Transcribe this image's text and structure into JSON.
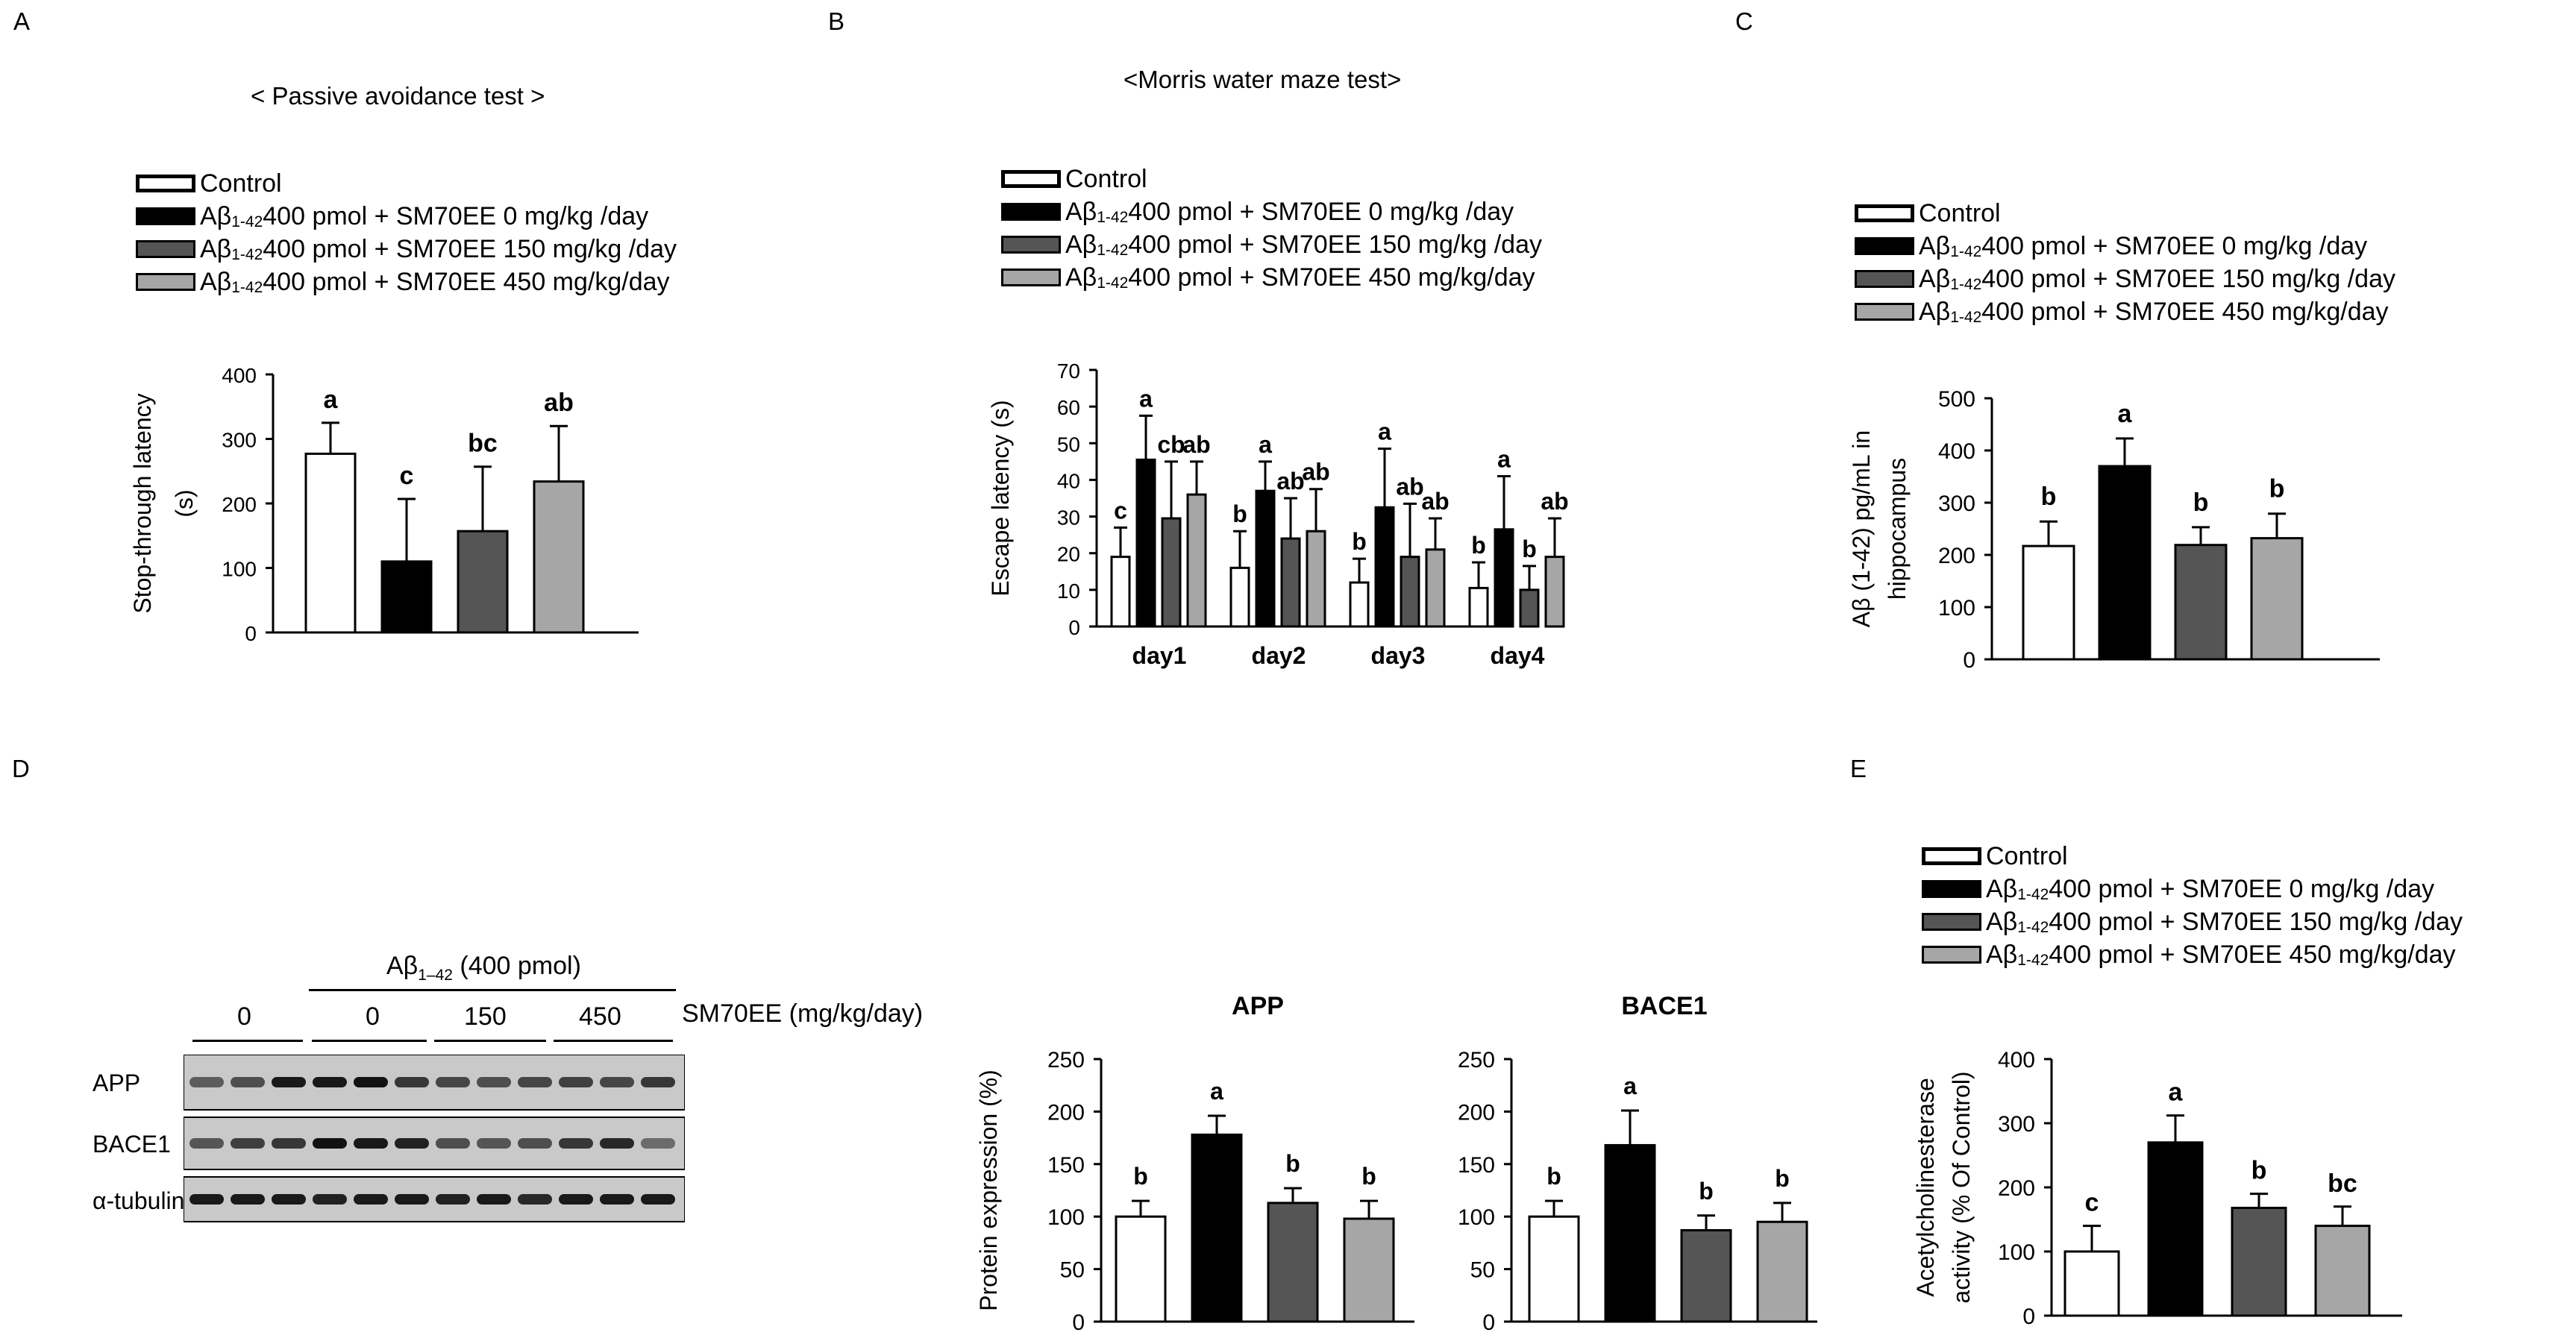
{
  "legend": {
    "control": "Control",
    "ab_prefix": "Aβ",
    "ab_sub": "1-42",
    "dose0": " 400 pmol + SM70EE 0 mg/kg /day",
    "dose150": " 400 pmol + SM70EE 150 mg/kg /day",
    "dose450": " 400 pmol + SM70EE 450 mg/kg/day"
  },
  "colors": {
    "control": "#ffffff",
    "dose0": "#000000",
    "dose150": "#555555",
    "dose450": "#a6a6a6"
  },
  "western_blot": {
    "treatment_label": "Aβ",
    "treatment_sub": "1–42",
    "treatment_dose": "(400 pmol)",
    "group_labels": [
      "0",
      "0",
      "150",
      "450"
    ],
    "sm70ee_label": "SM70EE (mg/kg/day)",
    "rows": [
      "APP",
      "BACE1",
      "α-tubulin"
    ]
  },
  "chart_data": [
    {
      "panel": "A",
      "type": "bar",
      "title": "< Passive avoidance test >",
      "ylabel_lines": [
        "Stop-through  latency",
        "(s)"
      ],
      "ylim": [
        0,
        400
      ],
      "yticks": [
        0,
        100,
        200,
        300,
        400
      ],
      "series": [
        {
          "name": "Control",
          "value": 277,
          "error": 48,
          "label": "a"
        },
        {
          "name": "Aβ 400 pmol + SM70EE 0 mg/kg/day",
          "value": 110,
          "error": 97,
          "label": "c"
        },
        {
          "name": "Aβ 400 pmol + SM70EE 150 mg/kg/day",
          "value": 157,
          "error": 100,
          "label": "bc"
        },
        {
          "name": "Aβ 400 pmol + SM70EE 450 mg/kg/day",
          "value": 234,
          "error": 86,
          "label": "ab"
        }
      ]
    },
    {
      "panel": "B",
      "type": "bar",
      "title": "<Morris water maze test>",
      "ylabel_lines": [
        "Escape latency (s)"
      ],
      "ylim": [
        0,
        70
      ],
      "yticks": [
        0,
        10,
        20,
        30,
        40,
        50,
        60,
        70
      ],
      "categories": [
        "day1",
        "day2",
        "day3",
        "day4"
      ],
      "series": [
        {
          "name": "Control",
          "values": [
            19,
            16,
            12,
            10.5
          ],
          "errors": [
            8,
            10,
            6.5,
            7
          ],
          "labels": [
            "c",
            "b",
            "b",
            "b"
          ]
        },
        {
          "name": "Aβ 400 pmol + SM70EE 0 mg/kg/day",
          "values": [
            45.5,
            37,
            32.5,
            26.5
          ],
          "errors": [
            12,
            8,
            16,
            14.5
          ],
          "labels": [
            "a",
            "a",
            "a",
            "a"
          ]
        },
        {
          "name": "Aβ 400 pmol + SM70EE 150 mg/kg/day",
          "values": [
            29.5,
            24,
            19,
            10
          ],
          "errors": [
            15.5,
            11,
            14.5,
            6.5
          ],
          "labels": [
            "cb",
            "ab",
            "ab",
            "b"
          ]
        },
        {
          "name": "Aβ 400 pmol + SM70EE 450 mg/kg/day",
          "values": [
            36,
            26,
            21,
            19
          ],
          "errors": [
            9,
            11.5,
            8.5,
            10.5
          ],
          "labels": [
            "ab",
            "ab",
            "ab",
            "ab"
          ]
        }
      ]
    },
    {
      "panel": "C",
      "type": "bar",
      "ylabel_lines": [
        "Aβ (1-42) pg/mL in",
        "hippocampus"
      ],
      "ylim": [
        0,
        500
      ],
      "yticks": [
        0,
        100,
        200,
        300,
        400,
        500
      ],
      "series": [
        {
          "name": "Control",
          "value": 217,
          "error": 47,
          "label": "b"
        },
        {
          "name": "Aβ 400 pmol + SM70EE 0 mg/kg/day",
          "value": 370,
          "error": 53,
          "label": "a"
        },
        {
          "name": "Aβ 400 pmol + SM70EE 150 mg/kg/day",
          "value": 219,
          "error": 34,
          "label": "b"
        },
        {
          "name": "Aβ 400 pmol + SM70EE 450 mg/kg/day",
          "value": 232,
          "error": 47,
          "label": "b"
        }
      ]
    },
    {
      "panel": "D",
      "type": "bar",
      "title": "APP",
      "ylabel_lines": [
        "Protein expression (%)"
      ],
      "ylim": [
        0,
        250
      ],
      "yticks": [
        0,
        50,
        100,
        150,
        200,
        250
      ],
      "series": [
        {
          "name": "Control",
          "value": 100,
          "error": 15,
          "label": "b"
        },
        {
          "name": "Aβ 400 pmol + SM70EE 0 mg/kg/day",
          "value": 178,
          "error": 18,
          "label": "a"
        },
        {
          "name": "Aβ 400 pmol + SM70EE 150 mg/kg/day",
          "value": 113,
          "error": 14,
          "label": "b"
        },
        {
          "name": "Aβ 400 pmol + SM70EE 450 mg/kg/day",
          "value": 98,
          "error": 17,
          "label": "b"
        }
      ]
    },
    {
      "panel": "D",
      "type": "bar",
      "title": "BACE1",
      "ylabel_lines": [],
      "ylim": [
        0,
        250
      ],
      "yticks": [
        0,
        50,
        100,
        150,
        200,
        250
      ],
      "series": [
        {
          "name": "Control",
          "value": 100,
          "error": 15,
          "label": "b"
        },
        {
          "name": "Aβ 400 pmol + SM70EE 0 mg/kg/day",
          "value": 168,
          "error": 33,
          "label": "a"
        },
        {
          "name": "Aβ 400 pmol + SM70EE 150 mg/kg/day",
          "value": 87,
          "error": 14,
          "label": "b"
        },
        {
          "name": "Aβ 400 pmol + SM70EE 450 mg/kg/day",
          "value": 95,
          "error": 18,
          "label": "b"
        }
      ]
    },
    {
      "panel": "E",
      "type": "bar",
      "ylabel_lines": [
        "Acetylcholinesterase",
        "activity (% Of Control)"
      ],
      "ylim": [
        0,
        400
      ],
      "yticks": [
        0,
        100,
        200,
        300,
        400
      ],
      "series": [
        {
          "name": "Control",
          "value": 100,
          "error": 40,
          "label": "c"
        },
        {
          "name": "Aβ 400 pmol + SM70EE 0 mg/kg/day",
          "value": 270,
          "error": 42,
          "label": "a"
        },
        {
          "name": "Aβ 400 pmol + SM70EE 150 mg/kg/day",
          "value": 168,
          "error": 22,
          "label": "b"
        },
        {
          "name": "Aβ 400 pmol + SM70EE 450 mg/kg/day",
          "value": 140,
          "error": 30,
          "label": "bc"
        }
      ]
    }
  ],
  "panel_letters": [
    "A",
    "B",
    "C",
    "D",
    "E"
  ]
}
